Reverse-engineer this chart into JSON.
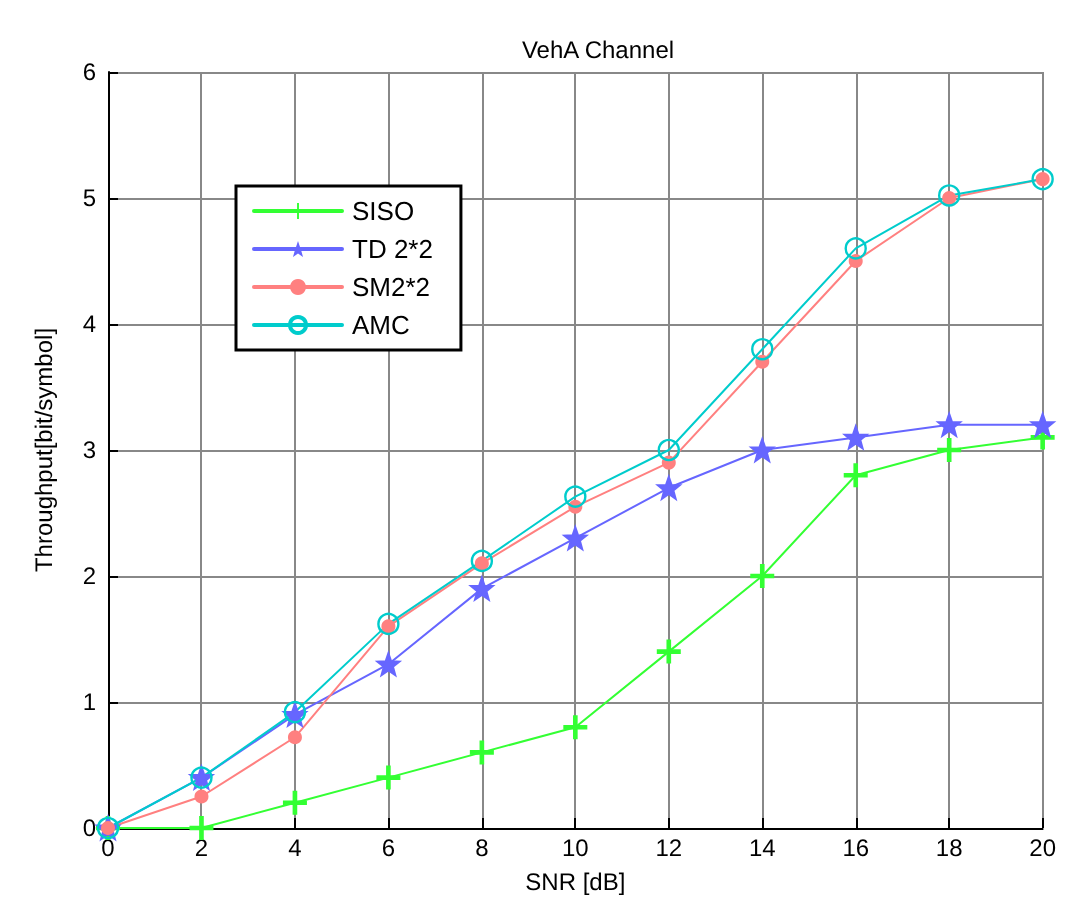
{
  "chart_data": {
    "type": "line",
    "title": "VehA Channel",
    "xlabel": "SNR [dB]",
    "ylabel": "Throughput[bit/symbol]",
    "x": [
      0,
      2,
      4,
      6,
      8,
      10,
      12,
      14,
      16,
      18,
      20
    ],
    "series": [
      {
        "name": "SISO",
        "color": "#33ff33",
        "marker": "cross",
        "values": [
          0,
          0,
          0.2,
          0.4,
          0.6,
          0.8,
          1.4,
          2.0,
          2.8,
          3.0,
          3.1
        ]
      },
      {
        "name": "TD 2*2",
        "color": "#6666ff",
        "marker": "star",
        "values": [
          0,
          0.4,
          0.9,
          1.3,
          1.9,
          2.3,
          2.7,
          3.0,
          3.1,
          3.2,
          3.2
        ]
      },
      {
        "name": "SM2*2",
        "color": "#ff8080",
        "marker": "circle",
        "values": [
          0,
          0.25,
          0.72,
          1.6,
          2.1,
          2.55,
          2.9,
          3.7,
          4.5,
          5.0,
          5.15
        ]
      },
      {
        "name": "AMC",
        "color": "#00cccc",
        "marker": "circle_open",
        "values": [
          0,
          0.4,
          0.92,
          1.62,
          2.12,
          2.63,
          3.0,
          3.8,
          4.6,
          5.02,
          5.15
        ]
      }
    ],
    "xlim": [
      0,
      20
    ],
    "xticks": [
      0,
      2,
      4,
      6,
      8,
      10,
      12,
      14,
      16,
      18,
      20
    ],
    "ylim": [
      0,
      6
    ],
    "yticks": [
      0,
      1,
      2,
      3,
      4,
      5,
      6
    ],
    "grid": true,
    "legend": "top left",
    "line_style": "solid"
  }
}
